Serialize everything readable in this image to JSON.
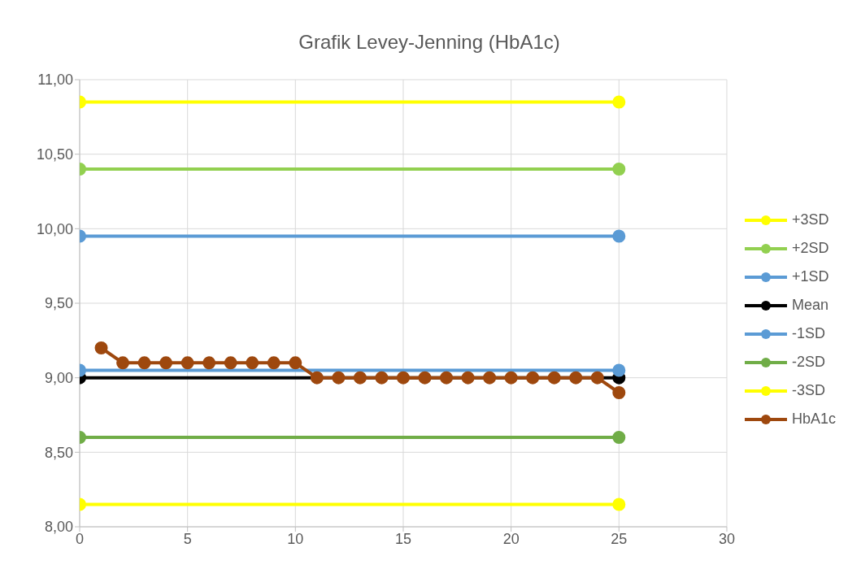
{
  "chart_data": {
    "type": "line",
    "title": "Grafik Levey-Jenning (HbA1c)",
    "xlim": [
      0,
      30
    ],
    "xticks": [
      0,
      5,
      10,
      15,
      20,
      25,
      30
    ],
    "ylim": [
      8,
      11
    ],
    "yticks": [
      {
        "value": 8,
        "label": "8,00"
      },
      {
        "value": 8.5,
        "label": "8,50"
      },
      {
        "value": 9,
        "label": "9,00"
      },
      {
        "value": 9.5,
        "label": "9,50"
      },
      {
        "value": 10,
        "label": "10,00"
      },
      {
        "value": 10.5,
        "label": "10,50"
      },
      {
        "value": 11,
        "label": "11,00"
      }
    ],
    "grid": true,
    "legend": "right",
    "marker": "circle",
    "line_style": "solid",
    "series": [
      {
        "name": "+3SD",
        "color": "#ffff00",
        "x": [
          0,
          25
        ],
        "values": [
          10.85,
          10.85
        ]
      },
      {
        "name": "+2SD",
        "color": "#92d050",
        "x": [
          0,
          25
        ],
        "values": [
          10.4,
          10.4
        ]
      },
      {
        "name": "+1SD",
        "color": "#5b9bd5",
        "x": [
          0,
          25
        ],
        "values": [
          9.95,
          9.95
        ]
      },
      {
        "name": "Mean",
        "color": "#000000",
        "x": [
          0,
          25
        ],
        "values": [
          9.0,
          9.0
        ]
      },
      {
        "name": "-1SD",
        "color": "#5b9bd5",
        "x": [
          0,
          25
        ],
        "values": [
          9.05,
          9.05
        ]
      },
      {
        "name": "-2SD",
        "color": "#70ad47",
        "x": [
          0,
          25
        ],
        "values": [
          8.6,
          8.6
        ]
      },
      {
        "name": "-3SD",
        "color": "#ffff00",
        "x": [
          0,
          25
        ],
        "values": [
          8.15,
          8.15
        ]
      },
      {
        "name": "HbA1c",
        "color": "#9e480e",
        "x": [
          1,
          2,
          3,
          4,
          5,
          6,
          7,
          8,
          9,
          10,
          11,
          12,
          13,
          14,
          15,
          16,
          17,
          18,
          19,
          20,
          21,
          22,
          23,
          24,
          25
        ],
        "values": [
          9.2,
          9.1,
          9.1,
          9.1,
          9.1,
          9.1,
          9.1,
          9.1,
          9.1,
          9.1,
          9.0,
          9.0,
          9.0,
          9.0,
          9.0,
          9.0,
          9.0,
          9.0,
          9.0,
          9.0,
          9.0,
          9.0,
          9.0,
          9.0,
          8.9
        ]
      }
    ]
  }
}
